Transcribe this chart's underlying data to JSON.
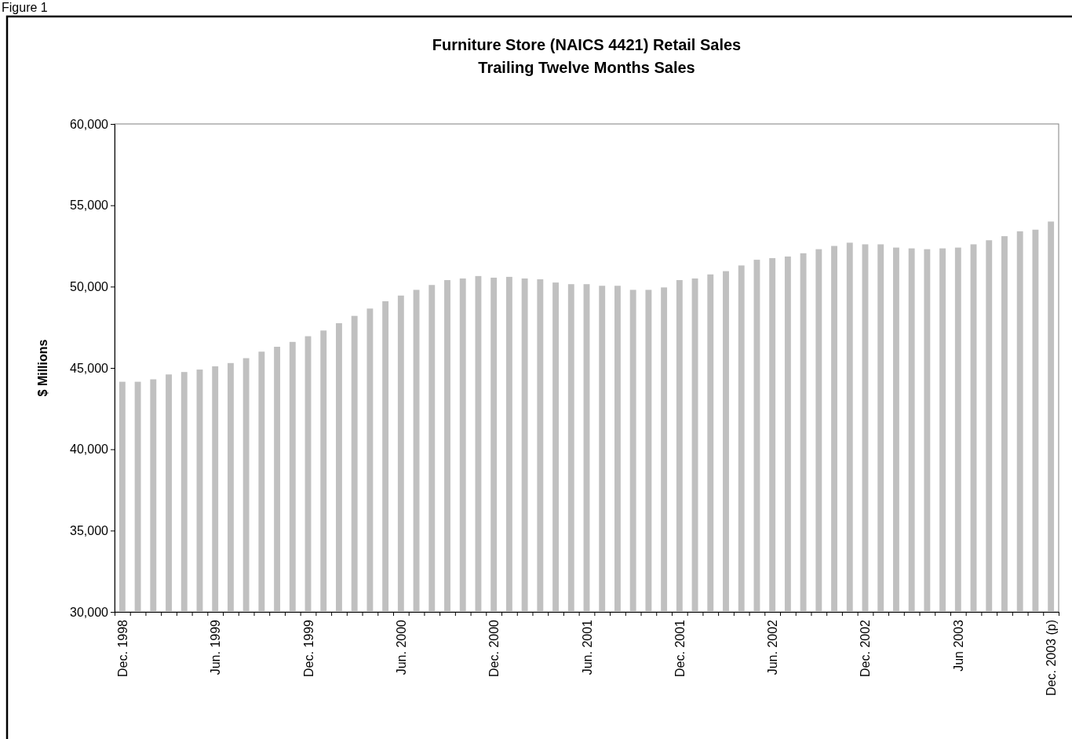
{
  "chart_data": {
    "type": "bar",
    "title": "Furniture Store (NAICS 4421) Retail Sales",
    "subtitle": "Trailing Twelve Months Sales",
    "ylabel": "$ Millions",
    "annotations": [
      "Figure 1"
    ],
    "categories": [
      "Dec. 1998",
      null,
      null,
      null,
      null,
      null,
      "Jun. 1999",
      null,
      null,
      null,
      null,
      null,
      "Dec. 1999",
      null,
      null,
      null,
      null,
      null,
      "Jun. 2000",
      null,
      null,
      null,
      null,
      null,
      "Dec. 2000",
      null,
      null,
      null,
      null,
      null,
      "Jun. 2001",
      null,
      null,
      null,
      null,
      null,
      "Dec. 2001",
      null,
      null,
      null,
      null,
      null,
      "Jun. 2002",
      null,
      null,
      null,
      null,
      null,
      "Dec. 2002",
      null,
      null,
      null,
      null,
      null,
      "Jun 2003",
      null,
      null,
      null,
      null,
      null,
      "Dec. 2003 (p)"
    ],
    "values": [
      44150,
      44150,
      44300,
      44600,
      44750,
      44900,
      45100,
      45300,
      45600,
      46000,
      46300,
      46600,
      46950,
      47300,
      47750,
      48200,
      48650,
      49100,
      49450,
      49800,
      50100,
      50400,
      50500,
      50650,
      50550,
      50600,
      50500,
      50450,
      50250,
      50150,
      50150,
      50050,
      50050,
      49800,
      49800,
      49950,
      50400,
      50500,
      50750,
      50950,
      51300,
      51650,
      51750,
      51850,
      52050,
      52300,
      52500,
      52700,
      52600,
      52600,
      52400,
      52350,
      52300,
      52350,
      52400,
      52600,
      52850,
      53100,
      53400,
      53500,
      54000
    ],
    "color": "#c0c0c0",
    "ylim": [
      30000,
      60000
    ],
    "yticks": [
      {
        "value": 30000,
        "label": "30,000"
      },
      {
        "value": 35000,
        "label": "35,000"
      },
      {
        "value": 40000,
        "label": "40,000"
      },
      {
        "value": 45000,
        "label": "45,000"
      },
      {
        "value": 50000,
        "label": "50,000"
      },
      {
        "value": 55000,
        "label": "55,000"
      },
      {
        "value": 60000,
        "label": "60,000"
      }
    ],
    "grid": false
  }
}
